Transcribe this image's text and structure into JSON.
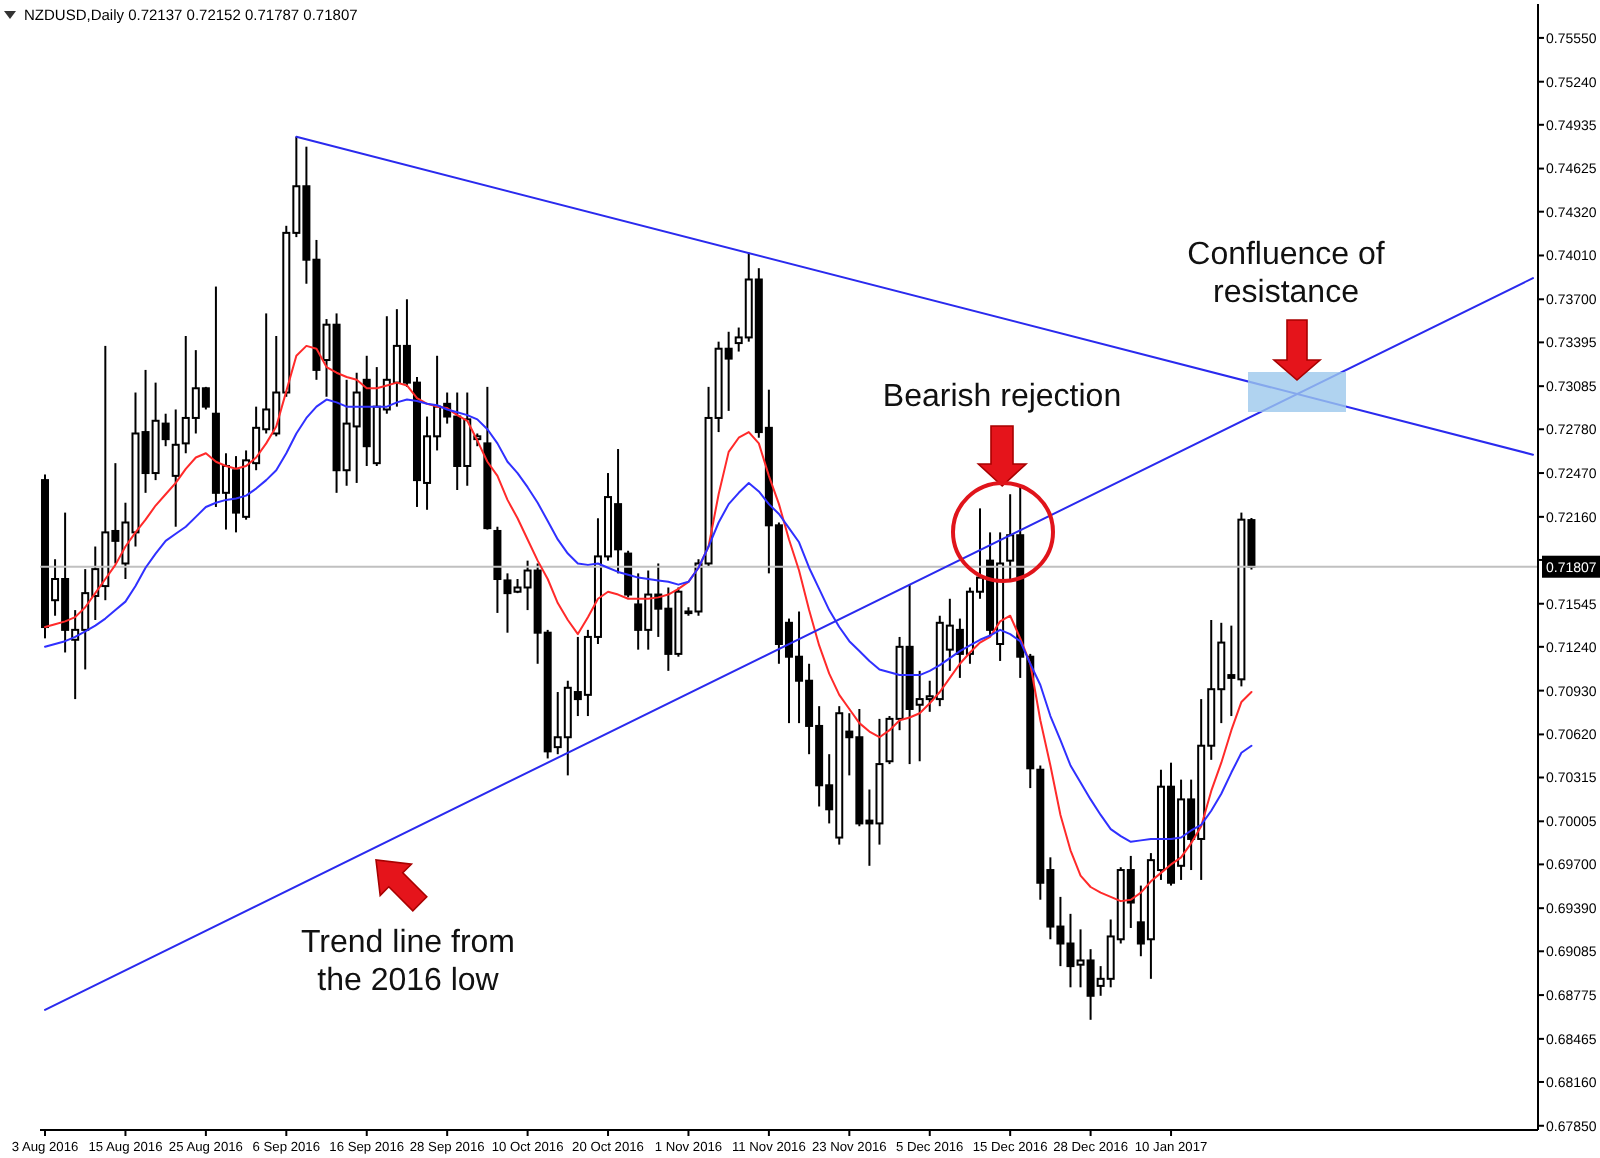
{
  "chart_data": {
    "type": "candlestick",
    "title": "NZDUSD,Daily 0.72137 0.72152 0.71787 0.71807",
    "categories": [
      "3 Aug 2016",
      null,
      null,
      null,
      null,
      null,
      null,
      null,
      "15 Aug 2016",
      null,
      null,
      null,
      null,
      null,
      null,
      null,
      "25 Aug 2016",
      null,
      null,
      null,
      null,
      null,
      null,
      null,
      "6 Sep 2016",
      null,
      null,
      null,
      null,
      null,
      null,
      null,
      "16 Sep 2016",
      null,
      null,
      null,
      null,
      null,
      null,
      null,
      "28 Sep 2016",
      null,
      null,
      null,
      null,
      null,
      null,
      null,
      "10 Oct 2016",
      null,
      null,
      null,
      null,
      null,
      null,
      null,
      "20 Oct 2016",
      null,
      null,
      null,
      null,
      null,
      null,
      null,
      "1 Nov 2016",
      null,
      null,
      null,
      null,
      null,
      null,
      null,
      "11 Nov 2016",
      null,
      null,
      null,
      null,
      null,
      null,
      null,
      "23 Nov 2016",
      null,
      null,
      null,
      null,
      null,
      null,
      null,
      "5 Dec 2016",
      null,
      null,
      null,
      null,
      null,
      null,
      null,
      "15 Dec 2016",
      null,
      null,
      null,
      null,
      null,
      null,
      null,
      "28 Dec 2016",
      null,
      null,
      null,
      null,
      null,
      null,
      null,
      "10 Jan 2017",
      null,
      null,
      null,
      null,
      null,
      null,
      null,
      null,
      null,
      null,
      null,
      null,
      null,
      null,
      null,
      null,
      null,
      null,
      null,
      null,
      null,
      null,
      null,
      null,
      null,
      null,
      null,
      null,
      null,
      null,
      null,
      null,
      null,
      null,
      null,
      null
    ],
    "ohlc": [
      [
        0.7242,
        0.7246,
        0.713,
        0.7138
      ],
      [
        0.7157,
        0.7186,
        0.7146,
        0.7172
      ],
      [
        0.7172,
        0.7219,
        0.712,
        0.7136
      ],
      [
        0.7129,
        0.715,
        0.7087,
        0.7136
      ],
      [
        0.7136,
        0.7179,
        0.7108,
        0.7162
      ],
      [
        0.716,
        0.7195,
        0.7143,
        0.7179
      ],
      [
        0.7167,
        0.7337,
        0.7157,
        0.7205
      ],
      [
        0.7206,
        0.7254,
        0.7183,
        0.7199
      ],
      [
        0.7183,
        0.7226,
        0.7172,
        0.7212
      ],
      [
        0.7205,
        0.7304,
        0.7195,
        0.7275
      ],
      [
        0.7276,
        0.732,
        0.7233,
        0.7247
      ],
      [
        0.7247,
        0.7311,
        0.7242,
        0.7284
      ],
      [
        0.7282,
        0.7289,
        0.7266,
        0.7271
      ],
      [
        0.7245,
        0.7292,
        0.7209,
        0.7267
      ],
      [
        0.7268,
        0.7344,
        0.7261,
        0.7286
      ],
      [
        0.7286,
        0.7334,
        0.7275,
        0.7307
      ],
      [
        0.7307,
        0.7308,
        0.7292,
        0.7294
      ],
      [
        0.7289,
        0.7379,
        0.7223,
        0.7233
      ],
      [
        0.7233,
        0.7261,
        0.7207,
        0.7252
      ],
      [
        0.7249,
        0.7259,
        0.7205,
        0.7219
      ],
      [
        0.7216,
        0.7263,
        0.7214,
        0.7256
      ],
      [
        0.7254,
        0.7294,
        0.7249,
        0.7279
      ],
      [
        0.7278,
        0.736,
        0.7275,
        0.7292
      ],
      [
        0.7275,
        0.7344,
        0.7273,
        0.7304
      ],
      [
        0.7304,
        0.7422,
        0.7301,
        0.7417
      ],
      [
        0.7417,
        0.7485,
        0.7414,
        0.745
      ],
      [
        0.745,
        0.7478,
        0.7381,
        0.7398
      ],
      [
        0.7398,
        0.7412,
        0.7313,
        0.732
      ],
      [
        0.7327,
        0.7356,
        0.7301,
        0.7352
      ],
      [
        0.7352,
        0.736,
        0.7233,
        0.7249
      ],
      [
        0.7249,
        0.7313,
        0.7238,
        0.7282
      ],
      [
        0.728,
        0.7318,
        0.724,
        0.7304
      ],
      [
        0.7313,
        0.733,
        0.7252,
        0.7266
      ],
      [
        0.7254,
        0.7322,
        0.7252,
        0.7294
      ],
      [
        0.7292,
        0.7358,
        0.7289,
        0.7313
      ],
      [
        0.7311,
        0.7363,
        0.7294,
        0.7337
      ],
      [
        0.7337,
        0.737,
        0.7308,
        0.7311
      ],
      [
        0.7311,
        0.7315,
        0.7223,
        0.7242
      ],
      [
        0.724,
        0.7287,
        0.7221,
        0.7273
      ],
      [
        0.7273,
        0.733,
        0.7263,
        0.7294
      ],
      [
        0.7296,
        0.7304,
        0.7282,
        0.7287
      ],
      [
        0.7287,
        0.7304,
        0.7235,
        0.7252
      ],
      [
        0.7252,
        0.7304,
        0.7238,
        0.7285
      ],
      [
        0.7271,
        0.7275,
        0.7266,
        0.7273
      ],
      [
        0.7268,
        0.7308,
        0.7207,
        0.7208
      ],
      [
        0.7206,
        0.7209,
        0.7148,
        0.7172
      ],
      [
        0.7171,
        0.7176,
        0.7134,
        0.7162
      ],
      [
        0.7163,
        0.7172,
        0.7162,
        0.7166
      ],
      [
        0.7166,
        0.7185,
        0.715,
        0.7178
      ],
      [
        0.7178,
        0.7183,
        0.7112,
        0.7134
      ],
      [
        0.7134,
        0.7136,
        0.7045,
        0.705
      ],
      [
        0.7053,
        0.7092,
        0.7048,
        0.706
      ],
      [
        0.706,
        0.71,
        0.7033,
        0.7095
      ],
      [
        0.7092,
        0.7131,
        0.7075,
        0.7087
      ],
      [
        0.709,
        0.7136,
        0.7075,
        0.7131
      ],
      [
        0.7131,
        0.7215,
        0.7126,
        0.7188
      ],
      [
        0.7188,
        0.7247,
        0.7185,
        0.723
      ],
      [
        0.7225,
        0.7264,
        0.7176,
        0.7193
      ],
      [
        0.719,
        0.7192,
        0.7159,
        0.7161
      ],
      [
        0.7154,
        0.7176,
        0.7122,
        0.7136
      ],
      [
        0.7136,
        0.7178,
        0.7122,
        0.7161
      ],
      [
        0.7161,
        0.7183,
        0.7131,
        0.7151
      ],
      [
        0.7151,
        0.7166,
        0.7107,
        0.7119
      ],
      [
        0.7119,
        0.7166,
        0.7117,
        0.7163
      ],
      [
        0.7149,
        0.7152,
        0.7146,
        0.7148
      ],
      [
        0.7149,
        0.7186,
        0.7146,
        0.7183
      ],
      [
        0.7183,
        0.7308,
        0.7181,
        0.7286
      ],
      [
        0.7286,
        0.734,
        0.7276,
        0.7335
      ],
      [
        0.7335,
        0.7347,
        0.7291,
        0.7328
      ],
      [
        0.7339,
        0.735,
        0.7333,
        0.7343
      ],
      [
        0.7343,
        0.7403,
        0.734,
        0.7384
      ],
      [
        0.7384,
        0.7392,
        0.7272,
        0.7276
      ],
      [
        0.7279,
        0.7306,
        0.7176,
        0.721
      ],
      [
        0.721,
        0.7212,
        0.7112,
        0.7126
      ],
      [
        0.7141,
        0.7144,
        0.707,
        0.7117
      ],
      [
        0.7117,
        0.7149,
        0.707,
        0.71
      ],
      [
        0.71,
        0.7112,
        0.7048,
        0.7068
      ],
      [
        0.7068,
        0.7082,
        0.7011,
        0.7026
      ],
      [
        0.7026,
        0.7048,
        0.6999,
        0.7009
      ],
      [
        0.6989,
        0.7082,
        0.6984,
        0.7077
      ],
      [
        0.7064,
        0.7077,
        0.7033,
        0.706
      ],
      [
        0.706,
        0.708,
        0.6997,
        0.6999
      ],
      [
        0.7001,
        0.7023,
        0.6969,
        0.6999
      ],
      [
        0.6999,
        0.7073,
        0.6984,
        0.7041
      ],
      [
        0.7043,
        0.7075,
        0.7041,
        0.7073
      ],
      [
        0.7073,
        0.7131,
        0.7065,
        0.7124
      ],
      [
        0.7124,
        0.7168,
        0.7041,
        0.708
      ],
      [
        0.7083,
        0.7107,
        0.7043,
        0.7087
      ],
      [
        0.7087,
        0.71,
        0.7078,
        0.7089
      ],
      [
        0.7087,
        0.7146,
        0.7082,
        0.7141
      ],
      [
        0.7122,
        0.7158,
        0.7107,
        0.7139
      ],
      [
        0.7136,
        0.7144,
        0.7102,
        0.7119
      ],
      [
        0.7119,
        0.7166,
        0.7112,
        0.7163
      ],
      [
        0.7163,
        0.7222,
        0.7158,
        0.7173
      ],
      [
        0.7185,
        0.7205,
        0.7131,
        0.7136
      ],
      [
        0.7126,
        0.7205,
        0.7114,
        0.7183
      ],
      [
        0.7185,
        0.7232,
        0.7171,
        0.7203
      ],
      [
        0.7203,
        0.7237,
        0.7102,
        0.7117
      ],
      [
        0.7117,
        0.7119,
        0.7024,
        0.7038
      ],
      [
        0.7037,
        0.704,
        0.6945,
        0.6957
      ],
      [
        0.6966,
        0.6975,
        0.6917,
        0.6926
      ],
      [
        0.6926,
        0.6947,
        0.6898,
        0.6914
      ],
      [
        0.6914,
        0.6935,
        0.6883,
        0.6898
      ],
      [
        0.6899,
        0.6924,
        0.6883,
        0.6902
      ],
      [
        0.6902,
        0.691,
        0.686,
        0.6877
      ],
      [
        0.6884,
        0.6898,
        0.6877,
        0.6889
      ],
      [
        0.6889,
        0.6931,
        0.6883,
        0.6919
      ],
      [
        0.6917,
        0.6968,
        0.6914,
        0.6966
      ],
      [
        0.6966,
        0.6976,
        0.6925,
        0.6943
      ],
      [
        0.6929,
        0.6955,
        0.6905,
        0.6914
      ],
      [
        0.6917,
        0.6978,
        0.6889,
        0.6973
      ],
      [
        0.6966,
        0.7037,
        0.6959,
        0.7025
      ],
      [
        0.7025,
        0.7042,
        0.6955,
        0.6957
      ],
      [
        0.6969,
        0.703,
        0.6959,
        0.7016
      ],
      [
        0.7016,
        0.703,
        0.6966,
        0.6988
      ],
      [
        0.6988,
        0.7087,
        0.6959,
        0.7054
      ],
      [
        0.7054,
        0.7143,
        0.7044,
        0.7094
      ],
      [
        0.7094,
        0.7141,
        0.707,
        0.7127
      ],
      [
        0.7104,
        0.7139,
        0.7075,
        0.7102
      ],
      [
        0.7101,
        0.7219,
        0.7096,
        0.7214
      ],
      [
        0.72137,
        0.72152,
        0.71787,
        0.71807
      ],
      null,
      null,
      null,
      null,
      null,
      null,
      null,
      null,
      null,
      null,
      null,
      null,
      null,
      null,
      null,
      null,
      null,
      null,
      null,
      null,
      null,
      null,
      null,
      null,
      null,
      null,
      null,
      null
    ],
    "color": "#000000",
    "series": [
      {
        "type": "line",
        "color": "#ff2a2a",
        "values": [
          0.7138,
          0.714,
          0.7142,
          0.7145,
          0.7152,
          0.7162,
          0.7172,
          0.7182,
          0.7195,
          0.7205,
          0.7214,
          0.7224,
          0.7232,
          0.724,
          0.725,
          0.7258,
          0.7261,
          0.7255,
          0.7252,
          0.725,
          0.7252,
          0.7258,
          0.7268,
          0.728,
          0.7305,
          0.733,
          0.7337,
          0.7335,
          0.7322,
          0.7318,
          0.7315,
          0.7313,
          0.7307,
          0.7307,
          0.7309,
          0.7311,
          0.7309,
          0.73,
          0.7296,
          0.7294,
          0.7293,
          0.7288,
          0.7284,
          0.727,
          0.7255,
          0.7245,
          0.7228,
          0.7215,
          0.72,
          0.7185,
          0.7172,
          0.7155,
          0.7143,
          0.7133,
          0.7145,
          0.7158,
          0.7163,
          0.7161,
          0.7158,
          0.7158,
          0.7158,
          0.7159,
          0.7161,
          0.7165,
          0.717,
          0.718,
          0.7195,
          0.7232,
          0.7262,
          0.7272,
          0.7276,
          0.7268,
          0.7245,
          0.7225,
          0.72,
          0.7178,
          0.715,
          0.7125,
          0.7105,
          0.709,
          0.708,
          0.707,
          0.7064,
          0.706,
          0.7065,
          0.7072,
          0.7074,
          0.7077,
          0.7084,
          0.7092,
          0.7102,
          0.7112,
          0.712,
          0.7127,
          0.7131,
          0.7142,
          0.7146,
          0.713,
          0.7112,
          0.7072,
          0.704,
          0.7005,
          0.698,
          0.6962,
          0.6954,
          0.695,
          0.6947,
          0.6944,
          0.6945,
          0.695,
          0.6958,
          0.6964,
          0.697,
          0.6975,
          0.6985,
          0.6997,
          0.7022,
          0.7042,
          0.7065,
          0.7085,
          0.7092,
          null,
          null,
          null,
          null,
          null,
          null,
          null,
          null,
          null,
          null,
          null,
          null,
          null,
          null,
          null,
          null,
          null,
          null,
          null,
          null,
          null,
          null,
          null,
          null,
          null,
          null,
          null,
          null
        ]
      },
      {
        "type": "line",
        "color": "#3030ff",
        "values": [
          0.7124,
          0.7126,
          0.7128,
          0.7131,
          0.7135,
          0.7139,
          0.7144,
          0.715,
          0.7156,
          0.7167,
          0.718,
          0.719,
          0.7199,
          0.7204,
          0.7209,
          0.7216,
          0.7223,
          0.7226,
          0.7228,
          0.7229,
          0.7231,
          0.7236,
          0.7242,
          0.7249,
          0.7261,
          0.7275,
          0.7286,
          0.7294,
          0.7299,
          0.7297,
          0.7294,
          0.7294,
          0.7294,
          0.7294,
          0.7294,
          0.7297,
          0.7299,
          0.7298,
          0.7296,
          0.7295,
          0.7292,
          0.729,
          0.7288,
          0.7285,
          0.7278,
          0.7268,
          0.7255,
          0.7247,
          0.7237,
          0.7226,
          0.7213,
          0.72,
          0.719,
          0.7183,
          0.7182,
          0.7183,
          0.718,
          0.7177,
          0.7175,
          0.7173,
          0.7172,
          0.7171,
          0.717,
          0.7168,
          0.717,
          0.718,
          0.7195,
          0.7212,
          0.7225,
          0.7233,
          0.724,
          0.7234,
          0.7225,
          0.7218,
          0.7208,
          0.7198,
          0.718,
          0.7165,
          0.715,
          0.7138,
          0.7128,
          0.7121,
          0.7114,
          0.7108,
          0.7106,
          0.7104,
          0.7104,
          0.7104,
          0.7107,
          0.7111,
          0.7116,
          0.7121,
          0.7125,
          0.7129,
          0.7132,
          0.7136,
          0.7133,
          0.7128,
          0.7112,
          0.7097,
          0.7075,
          0.7058,
          0.704,
          0.7028,
          0.7016,
          0.7005,
          0.6995,
          0.699,
          0.6986,
          0.6987,
          0.6988,
          0.6988,
          0.6988,
          0.6989,
          0.6994,
          0.6998,
          0.7008,
          0.702,
          0.7035,
          0.7049,
          0.7054,
          null,
          null,
          null,
          null,
          null,
          null,
          null,
          null,
          null,
          null,
          null,
          null,
          null,
          null,
          null,
          null,
          null,
          null,
          null,
          null,
          null,
          null,
          null,
          null,
          null,
          null,
          null,
          null
        ]
      },
      {
        "type": "line",
        "color": "#2a2aee",
        "values": [
          null,
          null,
          null,
          null,
          null,
          null,
          null,
          null,
          null,
          null,
          null,
          null,
          null,
          null,
          null,
          null,
          null,
          null,
          null,
          null,
          null,
          null,
          null,
          null,
          null,
          0.7485,
          null,
          null,
          null,
          null,
          null,
          null,
          null,
          null,
          null,
          null,
          null,
          null,
          null,
          null,
          null,
          null,
          null,
          null,
          null,
          null,
          null,
          null,
          null,
          null,
          null,
          null,
          null,
          null,
          null,
          null,
          null,
          null,
          null,
          null,
          null,
          null,
          null,
          null,
          null,
          null,
          null,
          null,
          null,
          null,
          null,
          null,
          null,
          null,
          null,
          null,
          null,
          null,
          null,
          null,
          null,
          null,
          null,
          null,
          null,
          null,
          null,
          null,
          null,
          null,
          null,
          null,
          null,
          null,
          null,
          null,
          null,
          null,
          null,
          null,
          null,
          null,
          null,
          null,
          null,
          null,
          null,
          null,
          null,
          null,
          null,
          null,
          null,
          null,
          null,
          null,
          null,
          null,
          null,
          null,
          null,
          null,
          null,
          null,
          null,
          null,
          null,
          null,
          null,
          null,
          null,
          null,
          null,
          null,
          null,
          null,
          null,
          null,
          null,
          null,
          null,
          null,
          null,
          null,
          null,
          null,
          null,
          null,
          0.726
        ]
      },
      {
        "type": "line",
        "color": "#2a2aee",
        "values": [
          0.6867,
          null,
          null,
          null,
          null,
          null,
          null,
          null,
          null,
          null,
          null,
          null,
          null,
          null,
          null,
          null,
          null,
          null,
          null,
          null,
          null,
          null,
          null,
          null,
          null,
          null,
          null,
          null,
          null,
          null,
          null,
          null,
          null,
          null,
          null,
          null,
          null,
          null,
          null,
          null,
          null,
          null,
          null,
          null,
          null,
          null,
          null,
          null,
          null,
          null,
          null,
          null,
          null,
          null,
          null,
          null,
          null,
          null,
          null,
          null,
          null,
          null,
          null,
          null,
          null,
          null,
          null,
          null,
          null,
          null,
          null,
          null,
          null,
          null,
          null,
          null,
          null,
          null,
          null,
          null,
          null,
          null,
          null,
          null,
          null,
          null,
          null,
          null,
          null,
          null,
          null,
          null,
          null,
          null,
          null,
          null,
          null,
          null,
          null,
          null,
          null,
          null,
          null,
          null,
          null,
          null,
          null,
          null,
          null,
          null,
          null,
          null,
          null,
          null,
          null,
          null,
          null,
          null,
          null,
          null,
          null,
          null,
          null,
          null,
          null,
          null,
          null,
          null,
          null,
          null,
          null,
          null,
          null,
          null,
          null,
          null,
          null,
          null,
          null,
          null,
          null,
          null,
          null,
          null,
          null,
          null,
          null,
          null,
          0.7385
        ]
      }
    ],
    "ylim": [
      0.6782,
      0.7579
    ],
    "yticks": [
      {
        "value": 0.7555,
        "label": "0.75550"
      },
      {
        "value": 0.7524,
        "label": "0.75240"
      },
      {
        "value": 0.74935,
        "label": "0.74935"
      },
      {
        "value": 0.74625,
        "label": "0.74625"
      },
      {
        "value": 0.7432,
        "label": "0.74320"
      },
      {
        "value": 0.7401,
        "label": "0.74010"
      },
      {
        "value": 0.737,
        "label": "0.73700"
      },
      {
        "value": 0.73395,
        "label": "0.73395"
      },
      {
        "value": 0.73085,
        "label": "0.73085"
      },
      {
        "value": 0.7278,
        "label": "0.72780"
      },
      {
        "value": 0.7247,
        "label": "0.72470"
      },
      {
        "value": 0.7216,
        "label": "0.72160"
      },
      {
        "value": 0.71855,
        "label": null
      },
      {
        "value": 0.71545,
        "label": "0.71545"
      },
      {
        "value": 0.7124,
        "label": "0.71240"
      },
      {
        "value": 0.7093,
        "label": "0.70930"
      },
      {
        "value": 0.7062,
        "label": "0.70620"
      },
      {
        "value": 0.70315,
        "label": "0.70315"
      },
      {
        "value": 0.70005,
        "label": "0.70005"
      },
      {
        "value": 0.697,
        "label": "0.69700"
      },
      {
        "value": 0.6939,
        "label": "0.69390"
      },
      {
        "value": 0.69085,
        "label": "0.69085"
      },
      {
        "value": 0.68775,
        "label": "0.68775"
      },
      {
        "value": 0.68465,
        "label": "0.68465"
      },
      {
        "value": 0.6816,
        "label": "0.68160"
      },
      {
        "value": 0.6785,
        "label": "0.67850"
      }
    ],
    "ref_lines": [
      {
        "axis": "y",
        "value": 0.71807,
        "label": "0.71807",
        "color": "#c0c0c0"
      }
    ],
    "annotations": [
      "Confluence of\nresistance",
      "Bearish rejection",
      "Trend line from\nthe 2016 low"
    ]
  }
}
